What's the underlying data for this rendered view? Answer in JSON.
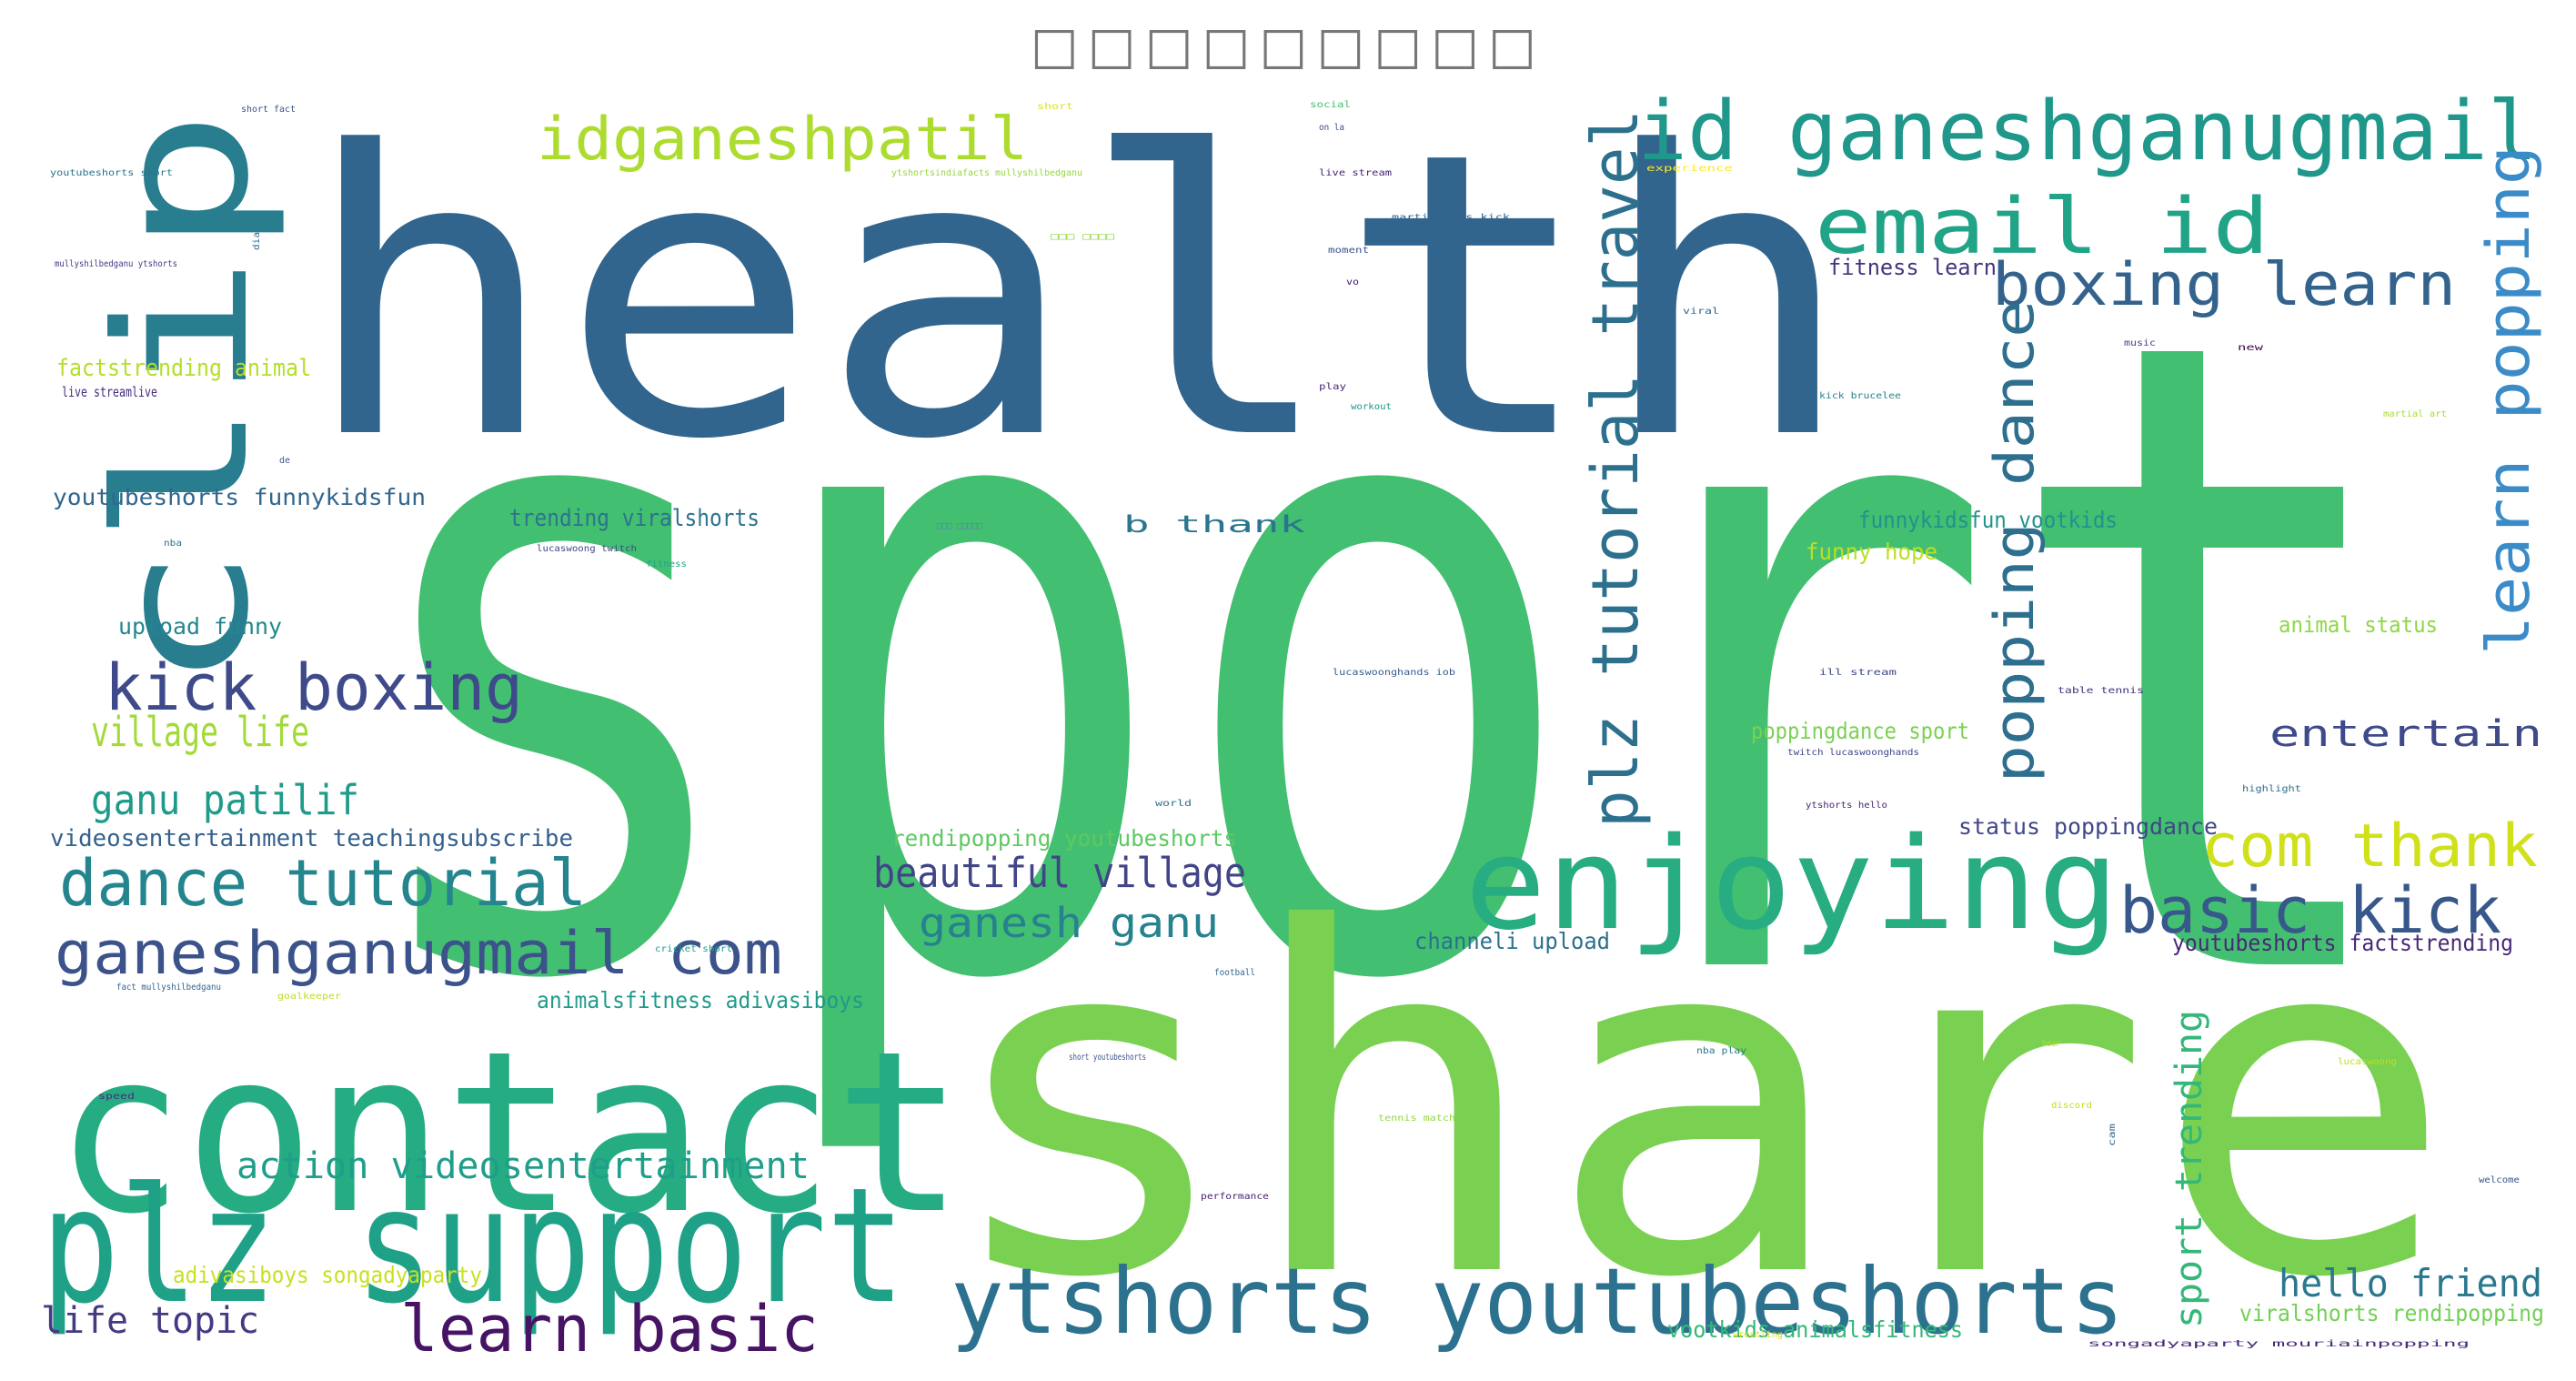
{
  "title": "□□□□□□□□□",
  "words": [
    {
      "text": "sport",
      "color": "#43bf71"
    },
    {
      "text": "health",
      "color": "#31658e"
    },
    {
      "text": "share",
      "color": "#7ad151"
    },
    {
      "text": "contact",
      "color": "#25ac82"
    },
    {
      "text": "clip",
      "color": "#287d8e"
    },
    {
      "text": "plz support",
      "color": "#1fa187"
    },
    {
      "text": "enjoying",
      "color": "#27ad81"
    },
    {
      "text": "ytshorts youtubeshorts",
      "color": "#2c728e"
    },
    {
      "text": "kick boxing",
      "color": "#3e4a89"
    },
    {
      "text": "learn basic",
      "color": "#471365"
    },
    {
      "text": "id ganeshganugmail",
      "color": "#1f988b"
    },
    {
      "text": "email id",
      "color": "#20a386"
    },
    {
      "text": "idganeshpatil",
      "color": "#addc30"
    },
    {
      "text": "boxing learn",
      "color": "#33638d"
    },
    {
      "text": "dance tutorial",
      "color": "#25858e"
    },
    {
      "text": "ganeshganugmail com",
      "color": "#3b528b"
    },
    {
      "text": "basic kick",
      "color": "#38588c"
    },
    {
      "text": "com thank",
      "color": "#d0e11c"
    },
    {
      "text": "plz tutorial travel",
      "color": "#2d708e"
    },
    {
      "text": "popping dance",
      "color": "#2a788e"
    },
    {
      "text": "popping dance",
      "color": "#2e6e8e"
    },
    {
      "text": "learn popping",
      "color": "#3b8bc8"
    },
    {
      "text": "village life",
      "color": "#a2da37"
    },
    {
      "text": "ganu patilif",
      "color": "#1e9b8a"
    },
    {
      "text": "beautiful village",
      "color": "#414487"
    },
    {
      "text": "ganesh ganu",
      "color": "#26828e"
    },
    {
      "text": "action videosentertainment",
      "color": "#1f9e89"
    },
    {
      "text": "hello friend",
      "color": "#2a788e"
    },
    {
      "text": "life topic",
      "color": "#443a83"
    },
    {
      "text": "entertain",
      "color": "#3e4a89"
    },
    {
      "text": "sport trending",
      "color": "#35b779"
    },
    {
      "text": "youtubeshorts funnykidsfun",
      "color": "#31668e"
    },
    {
      "text": "videosentertainment teachingsubscribe",
      "color": "#34618d"
    },
    {
      "text": "trending viralshorts",
      "color": "#2c738e"
    },
    {
      "text": "upload funny",
      "color": "#24868e"
    },
    {
      "text": "factstrending animal",
      "color": "#b5de2b"
    },
    {
      "text": "b thank",
      "color": "#2a768e"
    },
    {
      "text": "funnykidsfun vootkids",
      "color": "#21918c"
    },
    {
      "text": "funny hope",
      "color": "#bddf26"
    },
    {
      "text": "poppingdance sport",
      "color": "#7ad151"
    },
    {
      "text": "status poppingdance",
      "color": "#3f4788"
    },
    {
      "text": "rendipopping youtubeshorts",
      "color": "#5ec962"
    },
    {
      "text": "channeli upload",
      "color": "#2d708e"
    },
    {
      "text": "youtubeshorts factstrending",
      "color": "#482878"
    },
    {
      "text": "animalsfitness adivasiboys",
      "color": "#1f9a8a"
    },
    {
      "text": "adivasiboys songadyaparty",
      "color": "#c8e020"
    },
    {
      "text": "vootkids animalsfitness",
      "color": "#35b779"
    },
    {
      "text": "viralshorts rendipopping",
      "color": "#73d056"
    },
    {
      "text": "animal status",
      "color": "#8fd744"
    },
    {
      "text": "fitness learn",
      "color": "#46337e"
    },
    {
      "text": "live streamlive",
      "color": "#472d7b"
    },
    {
      "text": "short fact",
      "color": "#3b518b"
    },
    {
      "text": "youtubeshorts short",
      "color": "#2b758e"
    },
    {
      "text": "mullyshilbedganu ytshorts",
      "color": "#443983"
    },
    {
      "text": "ytshortsindiafacts mullyshilbedganu",
      "color": "#95d840"
    },
    {
      "text": "martialarts kick",
      "color": "#33638d"
    },
    {
      "text": "live stream",
      "color": "#482475"
    },
    {
      "text": "experience",
      "color": "#fde725"
    },
    {
      "text": "social",
      "color": "#44bf70"
    },
    {
      "text": "short",
      "color": "#dde318"
    },
    {
      "text": "on la",
      "color": "#3e4c8a"
    },
    {
      "text": "moment",
      "color": "#3b528b"
    },
    {
      "text": "viral",
      "color": "#31688e"
    },
    {
      "text": "music",
      "color": "#414487"
    },
    {
      "text": "new",
      "color": "#440154"
    },
    {
      "text": "play",
      "color": "#482878"
    },
    {
      "text": "workout",
      "color": "#1f968b"
    },
    {
      "text": "kick brucelee",
      "color": "#26828e"
    },
    {
      "text": "martial art",
      "color": "#a8db34"
    },
    {
      "text": "lucaswoong twitch",
      "color": "#3f4889"
    },
    {
      "text": "fitness",
      "color": "#20a486"
    },
    {
      "text": "lucaswoonghands iob",
      "color": "#365c8d"
    },
    {
      "text": "ill stream",
      "color": "#3e4989"
    },
    {
      "text": "table tennis",
      "color": "#46327e"
    },
    {
      "text": "twitch lucaswoonghands",
      "color": "#404688"
    },
    {
      "text": "highlight",
      "color": "#2e6f8e"
    },
    {
      "text": "ytshorts hello",
      "color": "#482677"
    },
    {
      "text": "world",
      "color": "#2e6d8e"
    },
    {
      "text": "cricket short",
      "color": "#1f9e89"
    },
    {
      "text": "football",
      "color": "#31688e"
    },
    {
      "text": "fact mullyshilbedganu",
      "color": "#33628d"
    },
    {
      "text": "goalkeeper",
      "color": "#bddf26"
    },
    {
      "text": "short youtubeshorts",
      "color": "#3a548c"
    },
    {
      "text": "nba play",
      "color": "#2a788e"
    },
    {
      "text": "bear",
      "color": "#b0dd2f"
    },
    {
      "text": "lucaswoong",
      "color": "#b8de29"
    },
    {
      "text": "speed",
      "color": "#472c7a"
    },
    {
      "text": "tennis match",
      "color": "#94d840"
    },
    {
      "text": "discord",
      "color": "#c2df23"
    },
    {
      "text": "performance",
      "color": "#481f70"
    },
    {
      "text": "welcome",
      "color": "#3a548c"
    },
    {
      "text": "wrestling",
      "color": "#d8e219"
    },
    {
      "text": "songadyaparty mouriainpopping",
      "color": "#482878"
    },
    {
      "text": "cam",
      "color": "#31688e"
    },
    {
      "text": "de",
      "color": "#39568c"
    },
    {
      "text": "dia",
      "color": "#2c718e"
    },
    {
      "text": "nba",
      "color": "#2c728e"
    },
    {
      "text": "vo",
      "color": "#481769"
    },
    {
      "text": "□□□ □□□□",
      "color": "#90d743"
    },
    {
      "text": "□□□ □□□□□",
      "color": "#5c7fb8"
    }
  ]
}
